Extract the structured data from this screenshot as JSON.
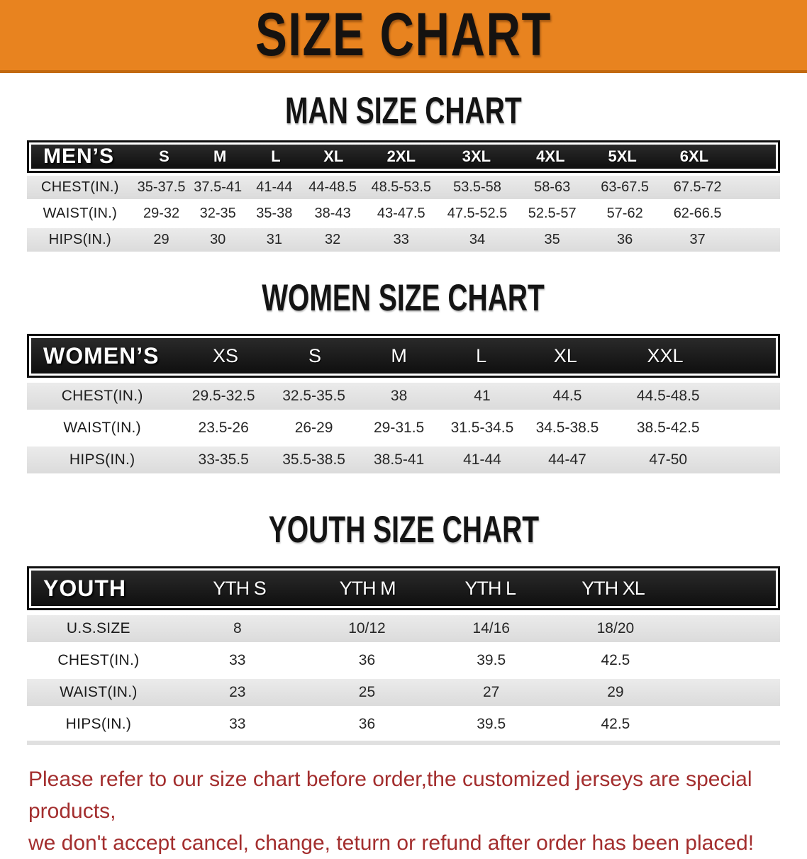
{
  "banner": {
    "title": "SIZE CHART",
    "background_color": "#E8831F",
    "border_color": "#C2690F"
  },
  "colors": {
    "header_bar": "#161616",
    "row_shade": "#E2E2E2",
    "footer_text": "#A32E2E"
  },
  "sections": [
    {
      "variant": "men",
      "heading": "MAN SIZE CHART",
      "table": {
        "category": "MEN’S",
        "sizes": [
          "S",
          "M",
          "L",
          "XL",
          "2XL",
          "3XL",
          "4XL",
          "5XL",
          "6XL"
        ],
        "rows": [
          {
            "label": "CHEST(IN.)",
            "values": [
              "35-37.5",
              "37.5-41",
              "41-44",
              "44-48.5",
              "48.5-53.5",
              "53.5-58",
              "58-63",
              "63-67.5",
              "67.5-72"
            ]
          },
          {
            "label": "WAIST(IN.)",
            "values": [
              "29-32",
              "32-35",
              "35-38",
              "38-43",
              "43-47.5",
              "47.5-52.5",
              "52.5-57",
              "57-62",
              "62-66.5"
            ]
          },
          {
            "label": "HIPS(IN.)",
            "values": [
              "29",
              "30",
              "31",
              "32",
              "33",
              "34",
              "35",
              "36",
              "37"
            ]
          }
        ]
      }
    },
    {
      "variant": "women",
      "heading": "WOMEN SIZE CHART",
      "table": {
        "category": "WOMEN’S",
        "sizes": [
          "XS",
          "S",
          "M",
          "L",
          "XL",
          "XXL"
        ],
        "rows": [
          {
            "label": "CHEST(IN.)",
            "values": [
              "29.5-32.5",
              "32.5-35.5",
              "38",
              "41",
              "44.5",
              "44.5-48.5"
            ]
          },
          {
            "label": "WAIST(IN.)",
            "values": [
              "23.5-26",
              "26-29",
              "29-31.5",
              "31.5-34.5",
              "34.5-38.5",
              "38.5-42.5"
            ]
          },
          {
            "label": "HIPS(IN.)",
            "values": [
              "33-35.5",
              "35.5-38.5",
              "38.5-41",
              "41-44",
              "44-47",
              "47-50"
            ]
          }
        ]
      }
    },
    {
      "variant": "youth",
      "heading": "YOUTH SIZE CHART",
      "table": {
        "category": "YOUTH",
        "sizes": [
          "YTH S",
          "YTH M",
          "YTH L",
          "YTH XL"
        ],
        "rows": [
          {
            "label": "U.S.SIZE",
            "values": [
              "8",
              "10/12",
              "14/16",
              "18/20"
            ]
          },
          {
            "label": "CHEST(IN.)",
            "values": [
              "33",
              "36",
              "39.5",
              "42.5"
            ]
          },
          {
            "label": "WAIST(IN.)",
            "values": [
              "23",
              "25",
              "27",
              "29"
            ]
          },
          {
            "label": "HIPS(IN.)",
            "values": [
              "33",
              "36",
              "39.5",
              "42.5"
            ]
          }
        ]
      }
    }
  ],
  "footer": {
    "line1": "Please refer to our size chart before order,the customized jerseys are special products,",
    "line2": "we don't accept cancel, change, teturn or refund after order has been placed!"
  }
}
